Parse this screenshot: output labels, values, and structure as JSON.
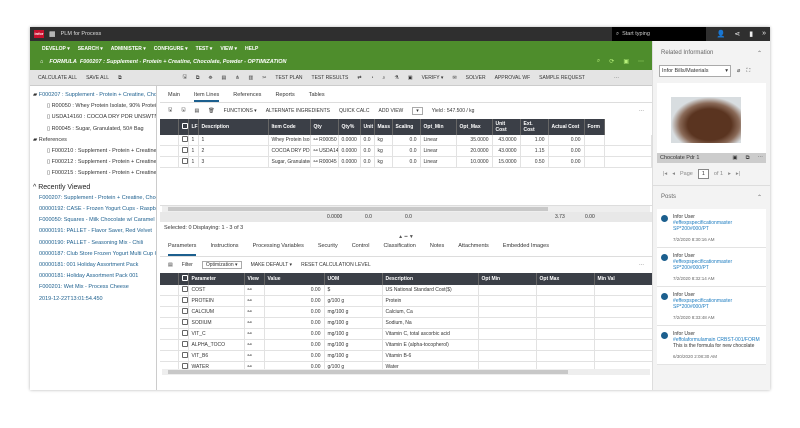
{
  "app": {
    "logo": "infor",
    "title": "PLM for Process",
    "search_placeholder": "Start typing"
  },
  "menu": [
    "DEVELOP ▾",
    "SEARCH ▾",
    "ADMINISTER ▾",
    "CONFIGURE ▾",
    "TEST ▾",
    "VIEW ▾",
    "HELP"
  ],
  "formula": {
    "label": "FORMULA",
    "title": "F000207 : Supplement - Protein + Creatine, Chocolate, Powder - OPTIMIZATION"
  },
  "toolbar": {
    "calc_all": "CALCULATE ALL",
    "save_all": "SAVE ALL",
    "test_plan": "TEST PLAN",
    "test_results": "TEST RESULTS",
    "verify": "VERIFY ▾",
    "solver": "SOLVER",
    "approval": "APPROVAL WF",
    "sample": "SAMPLE REQUEST"
  },
  "tree": {
    "root": "F000207 : Supplement - Protein + Creatine, Chocolate",
    "children": [
      "R00050 : Whey Protein Isolate, 90% Protein",
      "USDA14160 : COCOA DRY PDR UNSWTND",
      "R00045 : Sugar, Granulated, 50# Bag"
    ],
    "references_label": "References",
    "references": [
      "F000210 : Supplement - Protein + Creatine",
      "F000212 : Supplement - Protein + Creatine",
      "F000215 : Supplement - Protein + Creatine"
    ]
  },
  "recent": {
    "label": "Recently Viewed",
    "items": [
      "F000207: Supplement - Protein + Creatine, Chocol",
      "00000192: CASE - Frozen Yogurt Cups - Raspberry",
      "F000050: Squares - Milk Chocolate w/ Caramel",
      "00000191: PALLET - Flavor Saver, Red Velvet",
      "00000190: PALLET - Seasoning Mix - Chili",
      "00000187: Club Store Frozen Yogurt Multi Cup Case",
      "00000181: 001 Holiday Assortment Pack",
      "00000181: Holiday Assortment Pack 001",
      "F000201: Wet Mix - Process Cheese",
      "2019-12-22T13:01:54.450"
    ]
  },
  "tabs": [
    "Main",
    "Item Lines",
    "References",
    "Reports",
    "Tables"
  ],
  "item_toolbar": {
    "functions": "FUNCTIONS ▾",
    "alternate": "ALTERNATE INGREDIENTS",
    "quick_calc": "QUICK CALC",
    "add_view": "ADD VIEW",
    "yield": "Yield : 547.500 / kg"
  },
  "items": {
    "columns": [
      "",
      "",
      "LF",
      "Description",
      "Item Code",
      "Qty",
      "Qty%",
      "Unit",
      "Mass",
      "Scaling",
      "Opt_Min",
      "Opt_Max",
      "Unit Cost",
      "Ext. Cost",
      "Actual Cost",
      "Form"
    ],
    "rows": [
      [
        "1",
        "1",
        "Whey Protein Isolate, 90% Protein, (WPI",
        "R00050",
        "0.0000",
        "0.0",
        "kg",
        "0.0",
        "Linear",
        "35.0000",
        "43.0000",
        "1.00",
        "0.00"
      ],
      [
        "1",
        "2",
        "COCOA DRY PDR UNSWTND PROCW",
        "USDA14160",
        "0.0000",
        "0.0",
        "kg",
        "0.0",
        "Linear",
        "20.0000",
        "43.0000",
        "1.15",
        "0.00"
      ],
      [
        "1",
        "3",
        "Sugar, Granulated, 50# Bag",
        "R00045",
        "0.0000",
        "0.0",
        "kg",
        "0.0",
        "Linear",
        "10.0000",
        "15.0000",
        "0.50",
        "0.00"
      ]
    ],
    "totals": {
      "qty": "0.0000",
      "qtyp": "0.0",
      "mass": "0.0",
      "unit_cost": "3.73",
      "ext": "0.00"
    },
    "status": "Selected: 0  Displaying: 1 - 3 of 3"
  },
  "bottom_tabs": [
    "Parameters",
    "Instructions",
    "Processing Variables",
    "Security",
    "Control",
    "Classification",
    "Notes",
    "Attachments",
    "Embedded Images"
  ],
  "param_toolbar": {
    "filter": "Filter",
    "filter_value": "Optimization",
    "make_default": "MAKE DEFAULT ▾",
    "reset": "RESET CALCULATION LEVEL"
  },
  "params": {
    "columns": [
      "",
      "",
      "Parameter",
      "View",
      "Value",
      "UOM",
      "Description",
      "Opt Min",
      "Opt Max",
      "Min Val"
    ],
    "rows": [
      [
        "COST",
        "0.00",
        "$",
        "US National Standard Cost($)"
      ],
      [
        "PROTEIN",
        "0.00",
        "g/100 g",
        "Protein"
      ],
      [
        "CALCIUM",
        "0.00",
        "mg/100 g",
        "Calcium, Ca"
      ],
      [
        "SODIUM",
        "0.00",
        "mg/100 g",
        "Sodium, Na"
      ],
      [
        "VIT_C",
        "0.00",
        "mg/100 g",
        "Vitamin C, total ascorbic acid"
      ],
      [
        "ALPHA_TOCO",
        "0.00",
        "mg/100 g",
        "Vitamin E (alpha-tocopherol)"
      ],
      [
        "VIT_B6",
        "0.00",
        "mg/100 g",
        "Vitamin B-6"
      ],
      [
        "WATER",
        "0.00",
        "g/100 g",
        "Water"
      ]
    ]
  },
  "related": {
    "title": "Related Information",
    "select": "Infor Bills/Materials",
    "image_caption": "Chocolate Pdr 1",
    "page": "Page",
    "page_num": "1",
    "of": "of 1"
  },
  "posts": {
    "title": "Posts",
    "items": [
      {
        "user": "Infor User",
        "link": "#effexpspecificationmaster SP*200#000/PT",
        "time": "7/2/2020 8:30:16 AM"
      },
      {
        "user": "Infor User",
        "link": "#effexpspecificationmaster SP*200#000/PT",
        "time": "7/2/2020 8:32:14 AM"
      },
      {
        "user": "Infor User",
        "link": "#effexpspecificationmaster SP*200#000/PT",
        "time": "7/2/2020 8:33:48 AM"
      },
      {
        "user": "Infor User",
        "link": "#effolaformulamain CRBST-001/FORM",
        "text": "This is the formula for new chocolate",
        "time": "6/30/2020 2:08:30 AM"
      }
    ]
  },
  "colors": {
    "green": "#4e8d2c",
    "dark": "#2f2f2f",
    "link": "#1c5f8e"
  }
}
